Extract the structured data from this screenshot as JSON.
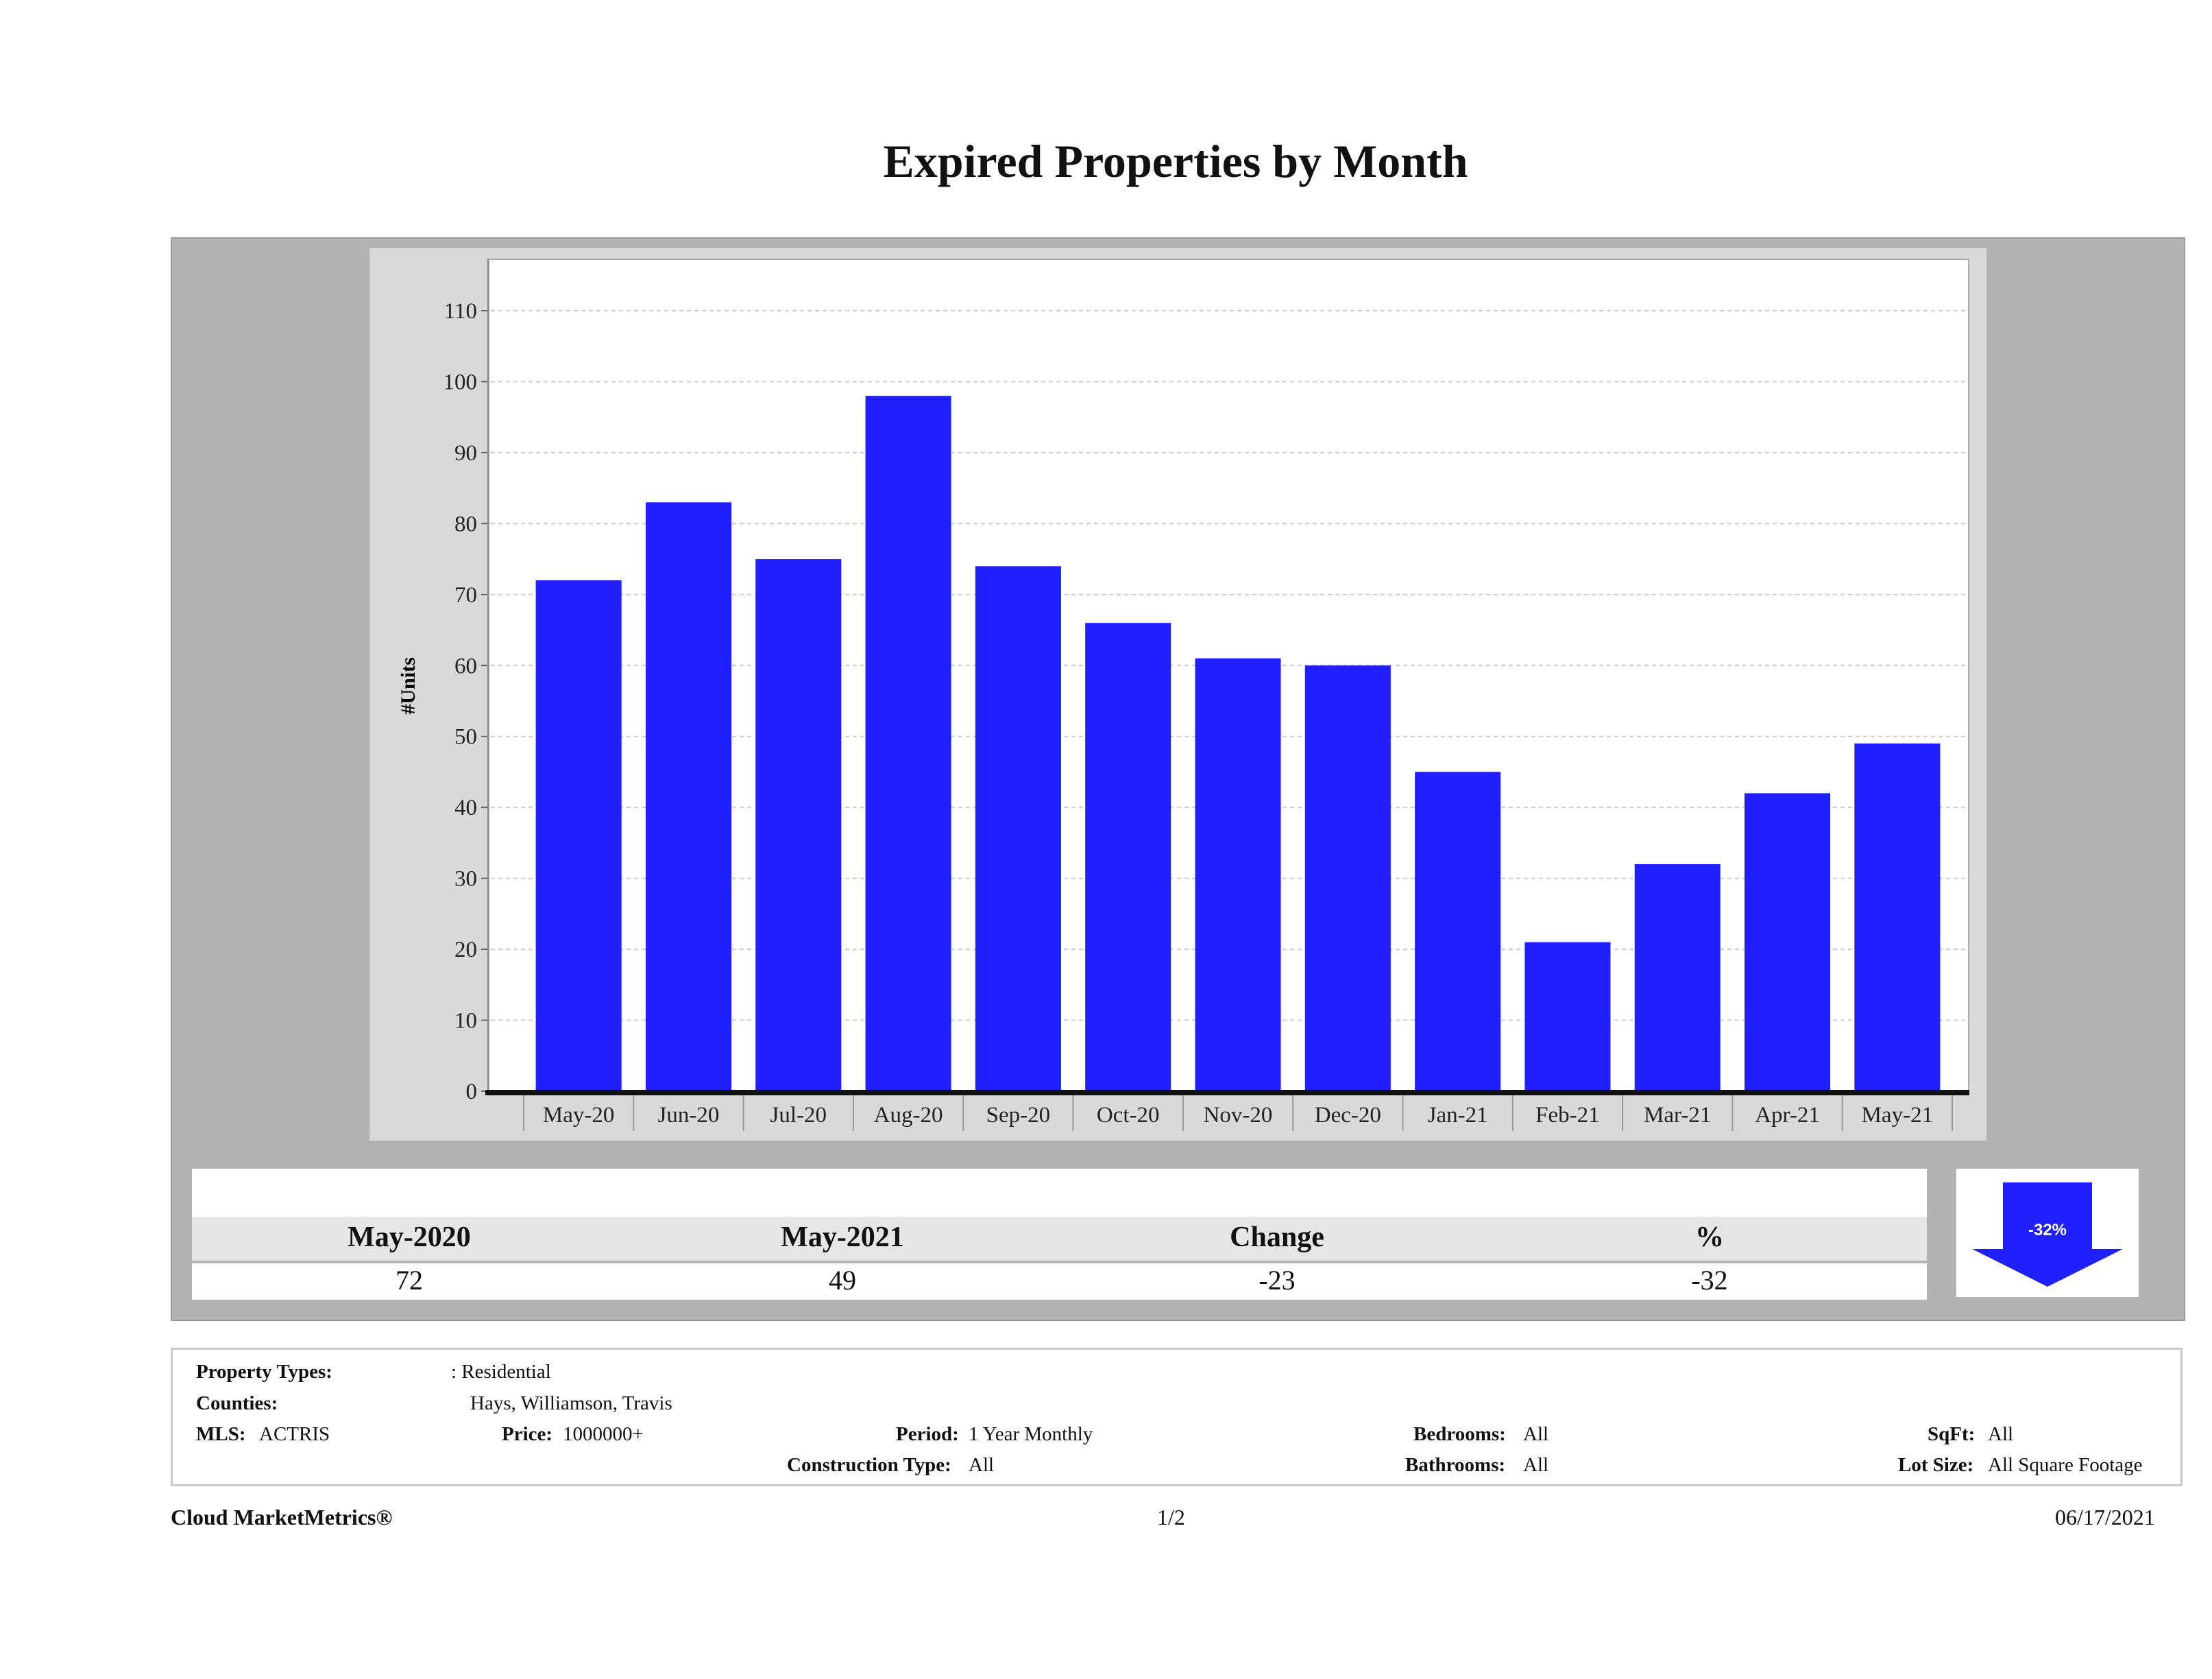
{
  "title": "Expired Properties by Month",
  "chart_data": {
    "type": "bar",
    "title": "Expired Properties by Month",
    "xlabel": "",
    "ylabel": "#Units",
    "categories": [
      "May-20",
      "Jun-20",
      "Jul-20",
      "Aug-20",
      "Sep-20",
      "Oct-20",
      "Nov-20",
      "Dec-20",
      "Jan-21",
      "Feb-21",
      "Mar-21",
      "Apr-21",
      "May-21"
    ],
    "values": [
      72,
      83,
      75,
      98,
      74,
      66,
      61,
      60,
      45,
      21,
      32,
      42,
      49
    ],
    "ylim": [
      0,
      117
    ],
    "yticks": [
      0,
      10,
      20,
      30,
      40,
      50,
      60,
      70,
      80,
      90,
      100,
      110
    ],
    "grid": true,
    "bar_color": "#1f1fff"
  },
  "summary": {
    "headers": [
      "May-2020",
      "May-2021",
      "Change",
      "%"
    ],
    "values": [
      "72",
      "49",
      "-23",
      "-32"
    ],
    "arrow_label": "-32%",
    "arrow_direction": "down"
  },
  "info": {
    "property_types_label": "Property Types:",
    "property_types": ": Residential",
    "counties_label": "Counties:",
    "counties": "Hays, Williamson, Travis",
    "mls_label": "MLS:",
    "mls": "ACTRIS",
    "price_label": "Price:",
    "price": "1000000+",
    "period_label": "Period:",
    "period": "1 Year Monthly",
    "construction_label": "Construction Type:",
    "construction": "All",
    "bedrooms_label": "Bedrooms:",
    "bedrooms": "All",
    "bathrooms_label": "Bathrooms:",
    "bathrooms": "All",
    "sqft_label": "SqFt:",
    "sqft": "All",
    "lotsize_label": "Lot Size:",
    "lotsize": "All Square Footage"
  },
  "footer": {
    "brand": "Cloud MarketMetrics®",
    "page": "1/2",
    "date": "06/17/2021"
  }
}
